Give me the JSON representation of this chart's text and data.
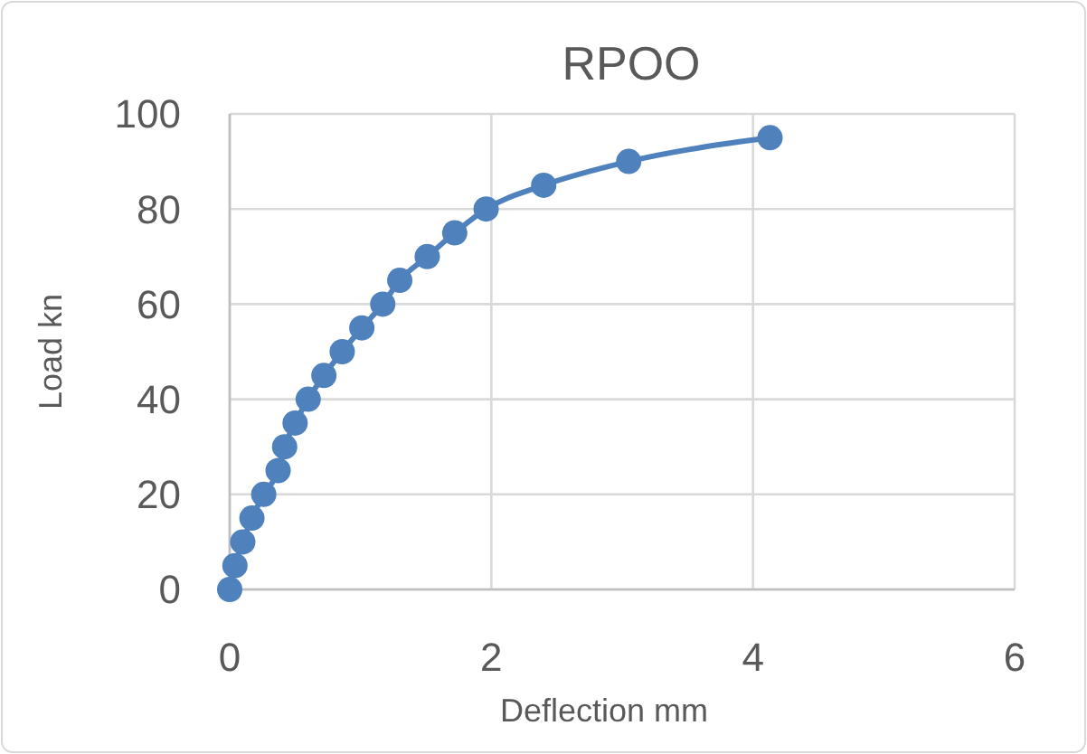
{
  "chart_data": {
    "type": "line",
    "title": "RPOO",
    "xlabel": "Deflection mm",
    "ylabel": "Load kn",
    "x": [
      0,
      0.04,
      0.1,
      0.17,
      0.26,
      0.37,
      0.42,
      0.5,
      0.6,
      0.72,
      0.86,
      1.01,
      1.17,
      1.3,
      1.51,
      1.72,
      1.96,
      2.4,
      3.05,
      4.13
    ],
    "series": [
      {
        "color": "#4f81bd",
        "values": [
          0,
          5,
          10,
          15,
          20,
          25,
          30,
          35,
          40,
          45,
          50,
          55,
          60,
          65,
          70,
          75,
          80,
          85,
          90,
          95
        ]
      }
    ],
    "xlim": [
      0,
      6
    ],
    "xticks": [
      0,
      2,
      4,
      6
    ],
    "ylim": [
      0,
      100
    ],
    "yticks": [
      0,
      20,
      40,
      60,
      80,
      100
    ],
    "grid": true,
    "marker": "circle",
    "line_style": "solid"
  }
}
